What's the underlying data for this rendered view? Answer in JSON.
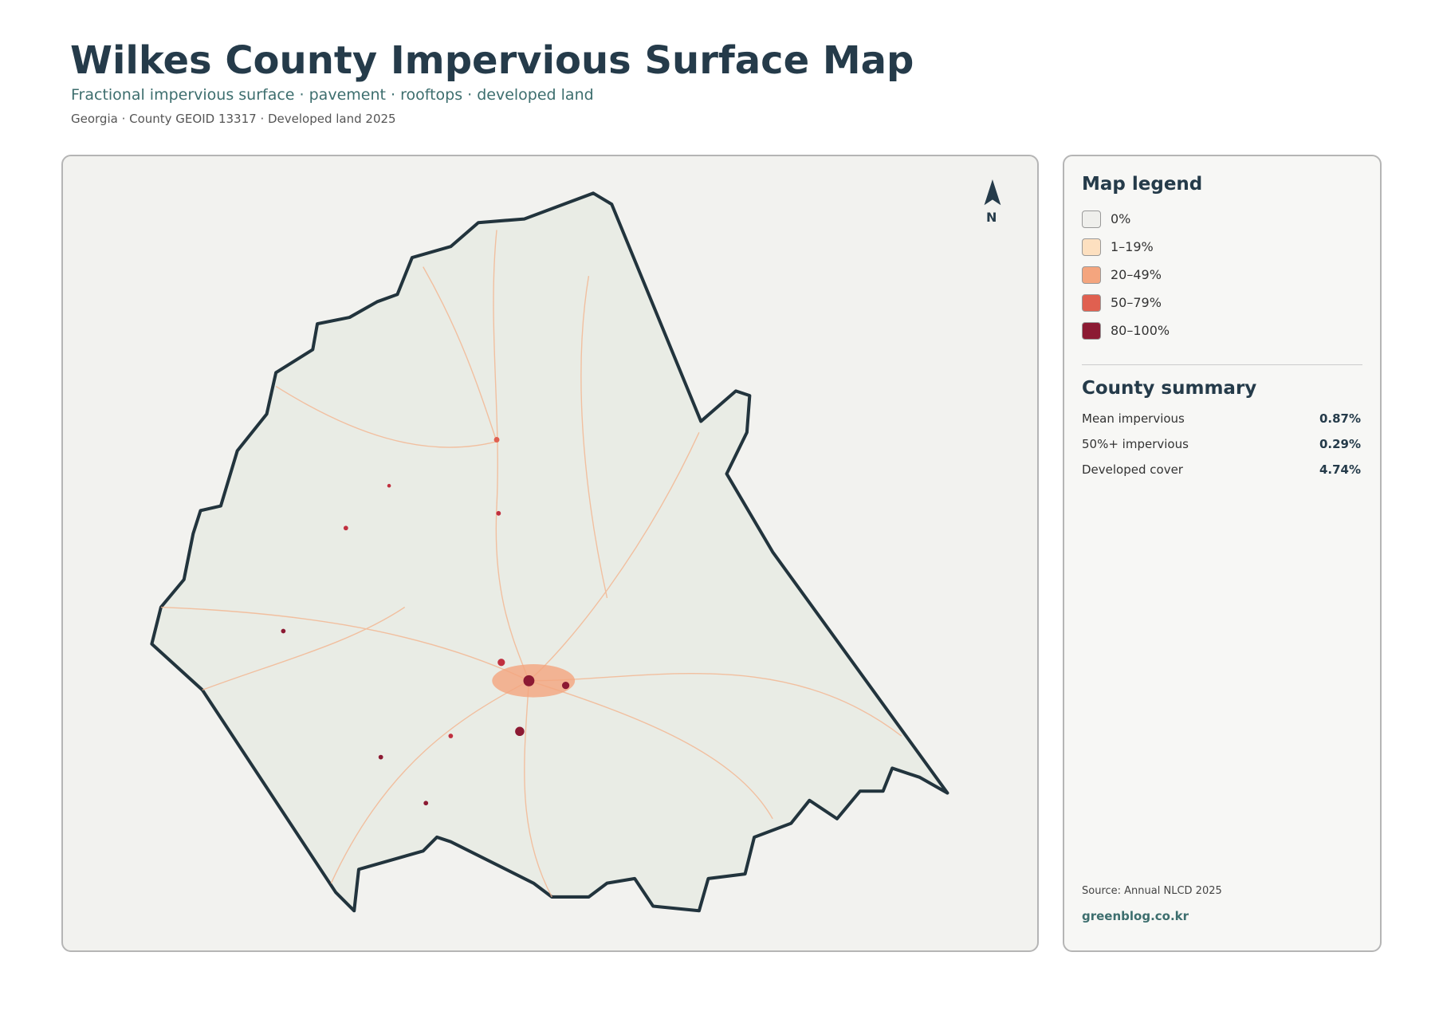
{
  "header": {
    "title": "Wilkes County Impervious Surface Map",
    "subtitle": "Fractional impervious surface · pavement · rooftops · developed land",
    "meta": "Georgia · County GEOID 13317 · Developed land 2025"
  },
  "map": {
    "north": "N"
  },
  "legend": {
    "title": "Map legend",
    "items": [
      {
        "label": "0%",
        "color": "#efefec"
      },
      {
        "label": "1–19%",
        "color": "#fde0c0"
      },
      {
        "label": "20–49%",
        "color": "#f4a57e"
      },
      {
        "label": "50–79%",
        "color": "#e06050"
      },
      {
        "label": "80–100%",
        "color": "#8c1a33"
      }
    ]
  },
  "summary": {
    "title": "County summary",
    "rows": [
      {
        "label": "Mean impervious",
        "value": "0.87%"
      },
      {
        "label": "50%+ impervious",
        "value": "0.29%"
      },
      {
        "label": "Developed cover",
        "value": "4.74%"
      }
    ]
  },
  "footer": {
    "source": "Source: Annual NLCD 2025",
    "site": "greenblog.co.kr"
  }
}
